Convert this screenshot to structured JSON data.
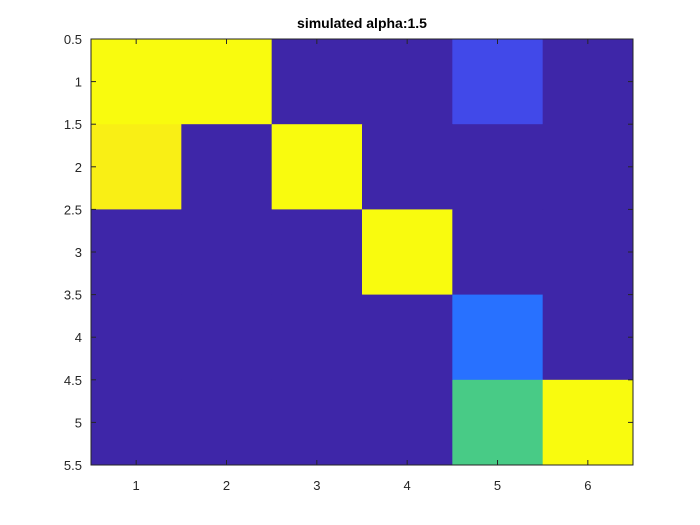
{
  "chart_data": {
    "type": "heatmap",
    "title": "simulated alpha:1.5",
    "xlabel": "",
    "ylabel": "",
    "x_ticks": [
      "1",
      "2",
      "3",
      "4",
      "5",
      "6"
    ],
    "y_ticks": [
      "0.5",
      "1",
      "1.5",
      "2",
      "2.5",
      "3",
      "3.5",
      "4",
      "4.5",
      "5",
      "5.5"
    ],
    "xlim": [
      0.5,
      6.5
    ],
    "ylim": [
      0.5,
      5.5
    ],
    "y_direction": "reverse",
    "colormap": "parula",
    "clim": [
      0,
      1
    ],
    "grid": false,
    "legend": "none",
    "values": [
      [
        1.0,
        1.0,
        0.0,
        0.0,
        0.15,
        0.0
      ],
      [
        0.97,
        0.0,
        1.0,
        0.0,
        0.0,
        0.0
      ],
      [
        0.0,
        0.0,
        0.0,
        1.0,
        0.0,
        0.0
      ],
      [
        0.0,
        0.0,
        0.0,
        0.0,
        0.25,
        0.0
      ],
      [
        0.0,
        0.0,
        0.0,
        0.0,
        0.55,
        1.0
      ]
    ]
  }
}
